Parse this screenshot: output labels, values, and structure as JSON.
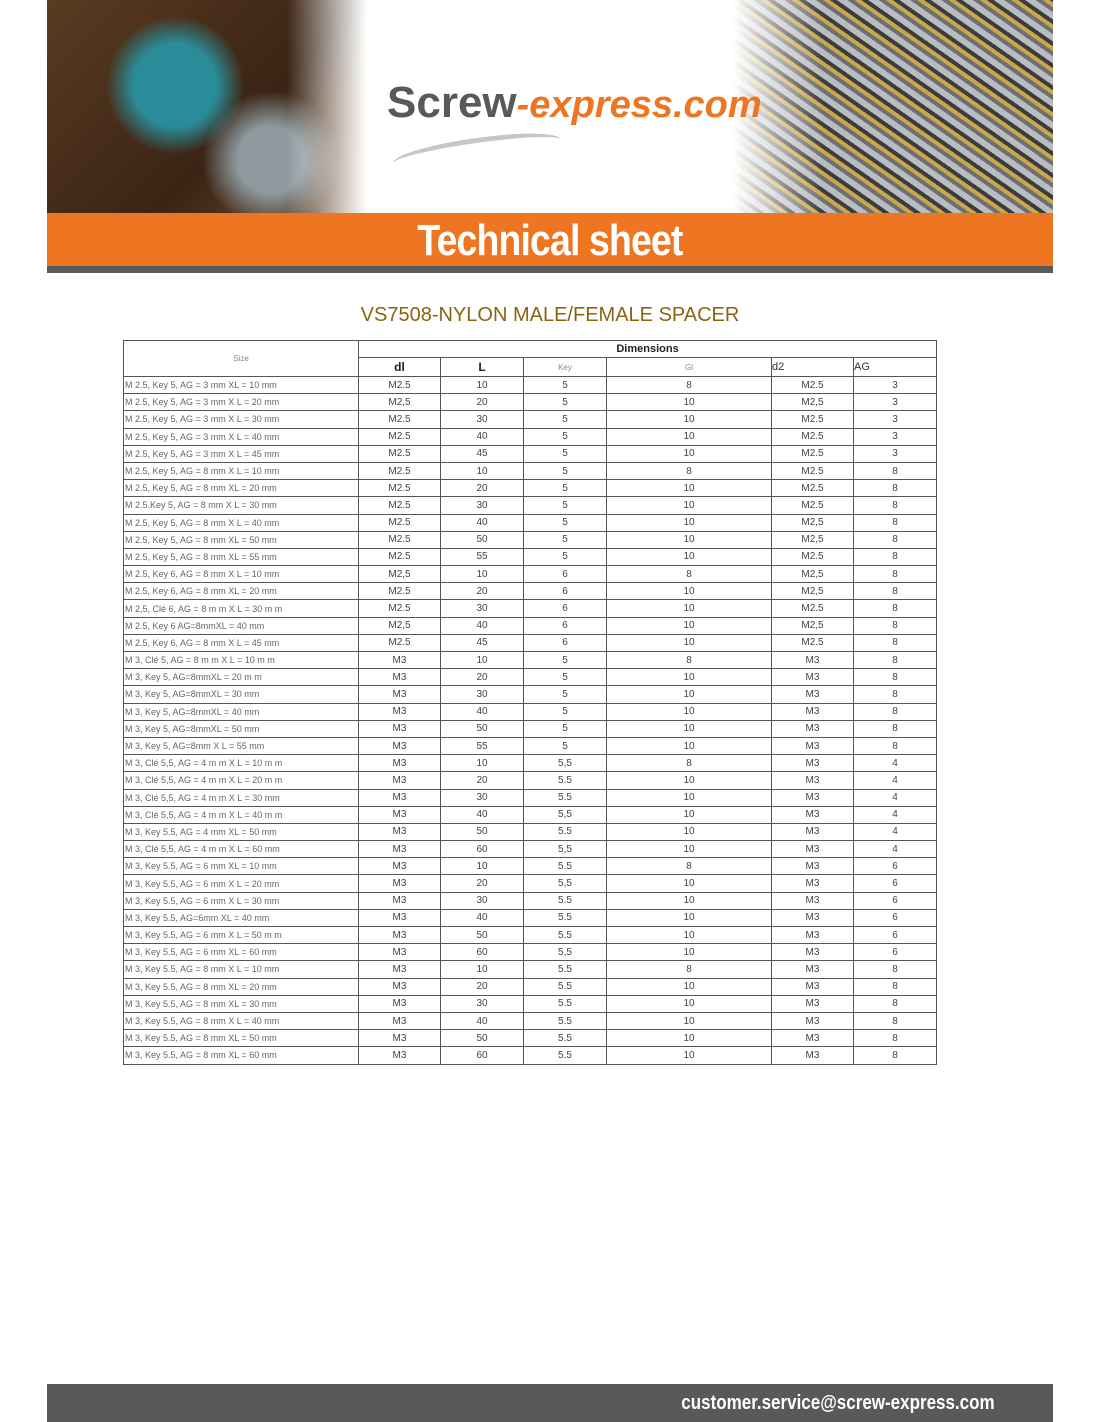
{
  "header": {
    "logo_part1": "Screw",
    "logo_part2": "-express.com",
    "banner_title": "Technical sheet"
  },
  "colors": {
    "accent": "#ee7623",
    "dark": "#58595b",
    "title": "#8a6410"
  },
  "product_title": "VS7508-NYLON MALE/FEMALE SPACER",
  "table": {
    "size_header": "Size",
    "group_header": "Dimensions",
    "columns": [
      "dl",
      "L",
      "Key",
      "Gl",
      "d2",
      "AG"
    ],
    "rows": [
      [
        "M 2.5, Key 5, AG = 3 mm XL = 10 mm",
        "M2.5",
        "10",
        "5",
        "8",
        "M2.5",
        "3"
      ],
      [
        "M 2.5, Key 5, AG = 3 mm X L = 20 mm",
        "M2,5",
        "20",
        "5",
        "10",
        "M2,5",
        "3"
      ],
      [
        "M 2.5, Key 5, AG = 3 mm X L = 30 mm",
        "M2.5",
        "30",
        "5",
        "10",
        "M2.5",
        "3"
      ],
      [
        "M 2.5, Key 5, AG = 3 mm X L = 40 mm",
        "M2.5",
        "40",
        "5",
        "10",
        "M2.5",
        "3"
      ],
      [
        "M 2.5, Key 5, AG = 3 mm X L = 45 mm",
        "M2.5",
        "45",
        "5",
        "10",
        "M2.5",
        "3"
      ],
      [
        "M 2.5, Key 5, AG = 8 mm X L = 10 mm",
        "M2.5",
        "10",
        "5",
        "8",
        "M2.5",
        "8"
      ],
      [
        "M 2.5, Key 5, AG = 8 mm XL = 20 mm",
        "M2.5",
        "20",
        "5",
        "10",
        "M2.5",
        "8"
      ],
      [
        "M 2.5.Key 5, AG = 8 mm X L = 30 mm",
        "M2.5",
        "30",
        "5",
        "10",
        "M2.5",
        "8"
      ],
      [
        "M 2.5, Key 5, AG = 8 mm X L = 40 mm",
        "M2.5",
        "40",
        "5",
        "10",
        "M2,5",
        "8"
      ],
      [
        "M 2.5, Key 5, AG = 8 mm XL = 50 mm",
        "M2.5",
        "50",
        "5",
        "10",
        "M2,5",
        "8"
      ],
      [
        "M 2.5, Key 5, AG = 8 mm XL = 55 mm",
        "M2.5",
        "55",
        "5",
        "10",
        "M2.5",
        "8"
      ],
      [
        "M 2.5, Key 6, AG = 8 mm X L = 10 mm",
        "M2,5",
        "10",
        "6",
        "8",
        "M2,5",
        "8"
      ],
      [
        "M 2.5, Key 6, AG = 8 mm XL = 20 mm",
        "M2.5",
        "20",
        "6",
        "10",
        "M2,5",
        "8"
      ],
      [
        "M 2,5, Clé 6, AG = 8 m m X L = 30 m m",
        "M2.5",
        "30",
        "6",
        "10",
        "M2.5",
        "8"
      ],
      [
        "M 2.5, Key 6 AG=8mmXL = 40 mm",
        "M2,5",
        "40",
        "6",
        "10",
        "M2,5",
        "8"
      ],
      [
        "M 2.5, Key 6, AG = 8 mm X L = 45 mm",
        "M2.5",
        "45",
        "6",
        "10",
        "M2.5",
        "8"
      ],
      [
        "M 3, Clé 5, AG = 8 m m X L = 10 m m",
        "M3",
        "10",
        "5",
        "8",
        "M3",
        "8"
      ],
      [
        "M 3, Key 5, AG=8mmXL = 20 m m",
        "M3",
        "20",
        "5",
        "10",
        "M3",
        "8"
      ],
      [
        "M 3, Key 5, AG=8mmXL = 30 mm",
        "M3",
        "30",
        "5",
        "10",
        "M3",
        "8"
      ],
      [
        "M 3, Key 5, AG=8mmXL = 40 mm",
        "M3",
        "40",
        "5",
        "10",
        "M3",
        "8"
      ],
      [
        "M 3, Key 5, AG=8mmXL = 50 mm",
        "M3",
        "50",
        "5",
        "10",
        "M3",
        "8"
      ],
      [
        "M 3, Key 5, AG=8mm X L = 55 mm",
        "M3",
        "55",
        "5",
        "10",
        "M3",
        "8"
      ],
      [
        "M 3, Clé 5,5, AG = 4 m m X L = 10 m m",
        "M3",
        "10",
        "5,5",
        "8",
        "M3",
        "4"
      ],
      [
        "M 3, Clé 5,5, AG = 4 m m X L = 20 m m",
        "M3",
        "20",
        "5.5",
        "10",
        "M3",
        "4"
      ],
      [
        "M 3, Clé 5,5, AG = 4 m m X L = 30 mm",
        "M3",
        "30",
        "5.5",
        "10",
        "M3",
        "4"
      ],
      [
        "M 3, Clé 5,5, AG = 4 m m X L = 40 m m",
        "M3",
        "40",
        "5,5",
        "10",
        "M3",
        "4"
      ],
      [
        "M 3, Key 5.5, AG = 4 mm XL = 50 mm",
        "M3",
        "50",
        "5.5",
        "10",
        "M3",
        "4"
      ],
      [
        "M 3, Clé 5,5, AG = 4 m m X L = 60 mm",
        "M3",
        "60",
        "5,5",
        "10",
        "M3",
        "4"
      ],
      [
        "M 3, Key 5.5, AG = 6 mm XL = 10 mm",
        "M3",
        "10",
        "5.5",
        "8",
        "M3",
        "6"
      ],
      [
        "M 3, Key 5.5, AG = 6 mm X L = 20 mm",
        "M3",
        "20",
        "5,5",
        "10",
        "M3",
        "6"
      ],
      [
        "M 3, Key 5.5, AG = 6 mm X L = 30 mm",
        "M3",
        "30",
        "5.5",
        "10",
        "M3",
        "6"
      ],
      [
        "M 3, Key 5.5, AG=6mm XL = 40 mm",
        "M3",
        "40",
        "5.5",
        "10",
        "M3",
        "6"
      ],
      [
        "M 3, Key 5.5, AG = 6 mm X L = 50 m m",
        "M3",
        "50",
        "5.5",
        "10",
        "M3",
        "6"
      ],
      [
        "M 3, Key 5.5, AG = 6 mm XL = 60 mm",
        "M3",
        "60",
        "5,5",
        "10",
        "M3",
        "6"
      ],
      [
        "M 3, Key 5.5, AG = 8 mm X L = 10 mm",
        "M3",
        "10",
        "5.5",
        "8",
        "M3",
        "8"
      ],
      [
        "M 3, Key 5.5, AG = 8 mm XL = 20 mm",
        "M3",
        "20",
        "5.5",
        "10",
        "M3",
        "8"
      ],
      [
        "M 3, Key 5.5, AG = 8 mm XL = 30 mm",
        "M3",
        "30",
        "5.5",
        "10",
        "M3",
        "8"
      ],
      [
        "M 3, Key 5.5, AG = 8 mm X L = 40 mm",
        "M3",
        "40",
        "5.5",
        "10",
        "M3",
        "8"
      ],
      [
        "M 3, Key 5.5, AG = 8 mm XL = 50 mm",
        "M3",
        "50",
        "5.5",
        "10",
        "M3",
        "8"
      ],
      [
        "M 3, Key 5.5, AG = 8 mm XL = 60 mm",
        "M3",
        "60",
        "5.5",
        "10",
        "M3",
        "8"
      ]
    ]
  },
  "footer": {
    "email": "customer.service@screw-express.com"
  }
}
